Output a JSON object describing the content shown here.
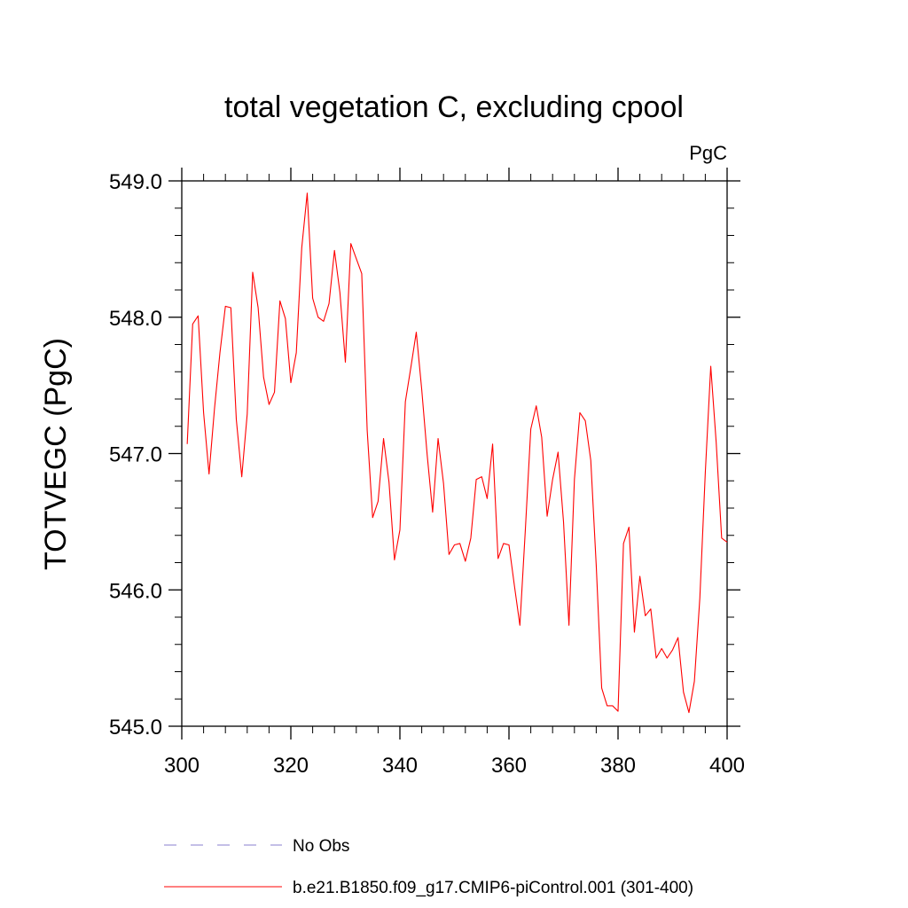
{
  "chart_data": {
    "type": "line",
    "title": "total vegetation C, excluding cpool",
    "units": "PgC",
    "ylabel": "TOTVEGC  (PgC)",
    "xlabel": "",
    "xlim": [
      300,
      400
    ],
    "ylim": [
      545.0,
      549.0
    ],
    "xticks": [
      300,
      320,
      340,
      360,
      380,
      400
    ],
    "xtick_labels": [
      "300",
      "320",
      "340",
      "360",
      "380",
      "400"
    ],
    "yticks": [
      545.0,
      546.0,
      547.0,
      548.0,
      549.0
    ],
    "ytick_labels": [
      "545.0",
      "546.0",
      "547.0",
      "548.0",
      "549.0"
    ],
    "x_minor_step": 4,
    "y_minor_step": 0.2,
    "grid": false,
    "legend_position": "bottom",
    "series": [
      {
        "name": "b.e21.B1850.f09_g17.CMIP6-piControl.001 (301-400)",
        "color": "#ff0000",
        "dash": "solid",
        "x": [
          301,
          302,
          303,
          304,
          305,
          306,
          307,
          308,
          309,
          310,
          311,
          312,
          313,
          314,
          315,
          316,
          317,
          318,
          319,
          320,
          321,
          322,
          323,
          324,
          325,
          326,
          327,
          328,
          329,
          330,
          331,
          332,
          333,
          334,
          335,
          336,
          337,
          338,
          339,
          340,
          341,
          342,
          343,
          344,
          345,
          346,
          347,
          348,
          349,
          350,
          351,
          352,
          353,
          354,
          355,
          356,
          357,
          358,
          359,
          360,
          361,
          362,
          363,
          364,
          365,
          366,
          367,
          368,
          369,
          370,
          371,
          372,
          373,
          374,
          375,
          376,
          377,
          378,
          379,
          380,
          381,
          382,
          383,
          384,
          385,
          386,
          387,
          388,
          389,
          390,
          391,
          392,
          393,
          394,
          395,
          396,
          397,
          398,
          399,
          400
        ],
        "values": [
          547.07,
          547.95,
          548.01,
          547.3,
          546.85,
          547.33,
          547.74,
          548.08,
          548.07,
          547.25,
          546.83,
          547.29,
          548.33,
          548.07,
          547.56,
          547.36,
          547.45,
          548.12,
          547.99,
          547.52,
          547.74,
          548.51,
          548.91,
          548.14,
          548.0,
          547.97,
          548.1,
          548.49,
          548.18,
          547.67,
          548.54,
          548.43,
          548.32,
          547.17,
          546.53,
          546.65,
          547.11,
          546.79,
          546.22,
          546.44,
          547.38,
          547.63,
          547.89,
          547.47,
          546.99,
          546.57,
          547.11,
          546.78,
          546.26,
          546.33,
          546.34,
          546.21,
          546.38,
          546.81,
          546.83,
          546.67,
          547.07,
          546.23,
          546.34,
          546.33,
          546.03,
          545.74,
          546.44,
          547.18,
          547.35,
          547.12,
          546.54,
          546.81,
          547.01,
          546.5,
          545.74,
          546.81,
          547.3,
          547.24,
          546.95,
          546.18,
          545.28,
          545.15,
          545.15,
          545.11,
          546.34,
          546.46,
          545.69,
          546.1,
          545.81,
          545.86,
          545.5,
          545.57,
          545.5,
          545.56,
          545.65,
          545.25,
          545.1,
          545.33,
          545.94,
          546.86,
          547.64,
          547.08,
          546.38,
          546.35
        ]
      },
      {
        "name": "No Obs",
        "color": "#8a7fcf",
        "dash": "dashed",
        "x": [],
        "values": []
      }
    ]
  }
}
